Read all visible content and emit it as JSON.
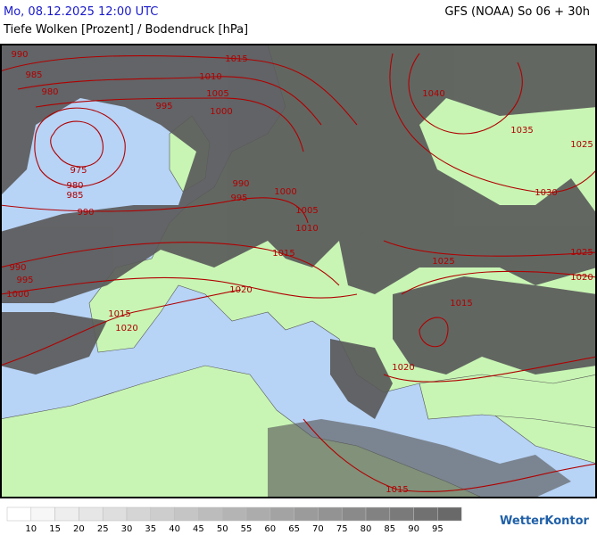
{
  "header": {
    "date_line": "Mo, 08.12.2025 12:00 UTC",
    "model": "GFS (NOAA) So 06 + 30h",
    "subtitle": "Tiefe Wolken [Prozent] / Bodendruck [hPa]"
  },
  "map": {
    "isobar_labels": [
      990,
      985,
      980,
      975,
      980,
      985,
      990,
      990,
      995,
      1000,
      1015,
      1010,
      1005,
      1000,
      995,
      990,
      995,
      1000,
      1005,
      1010,
      1015,
      1020,
      1015,
      1020,
      1040,
      1035,
      1025,
      1030,
      1025,
      1025,
      1020,
      1015,
      1020,
      1015
    ]
  },
  "legend": {
    "labels": [
      10,
      15,
      20,
      25,
      30,
      35,
      40,
      45,
      50,
      55,
      60,
      65,
      70,
      75,
      80,
      85,
      90,
      95
    ]
  },
  "logo": "WetterKontor"
}
